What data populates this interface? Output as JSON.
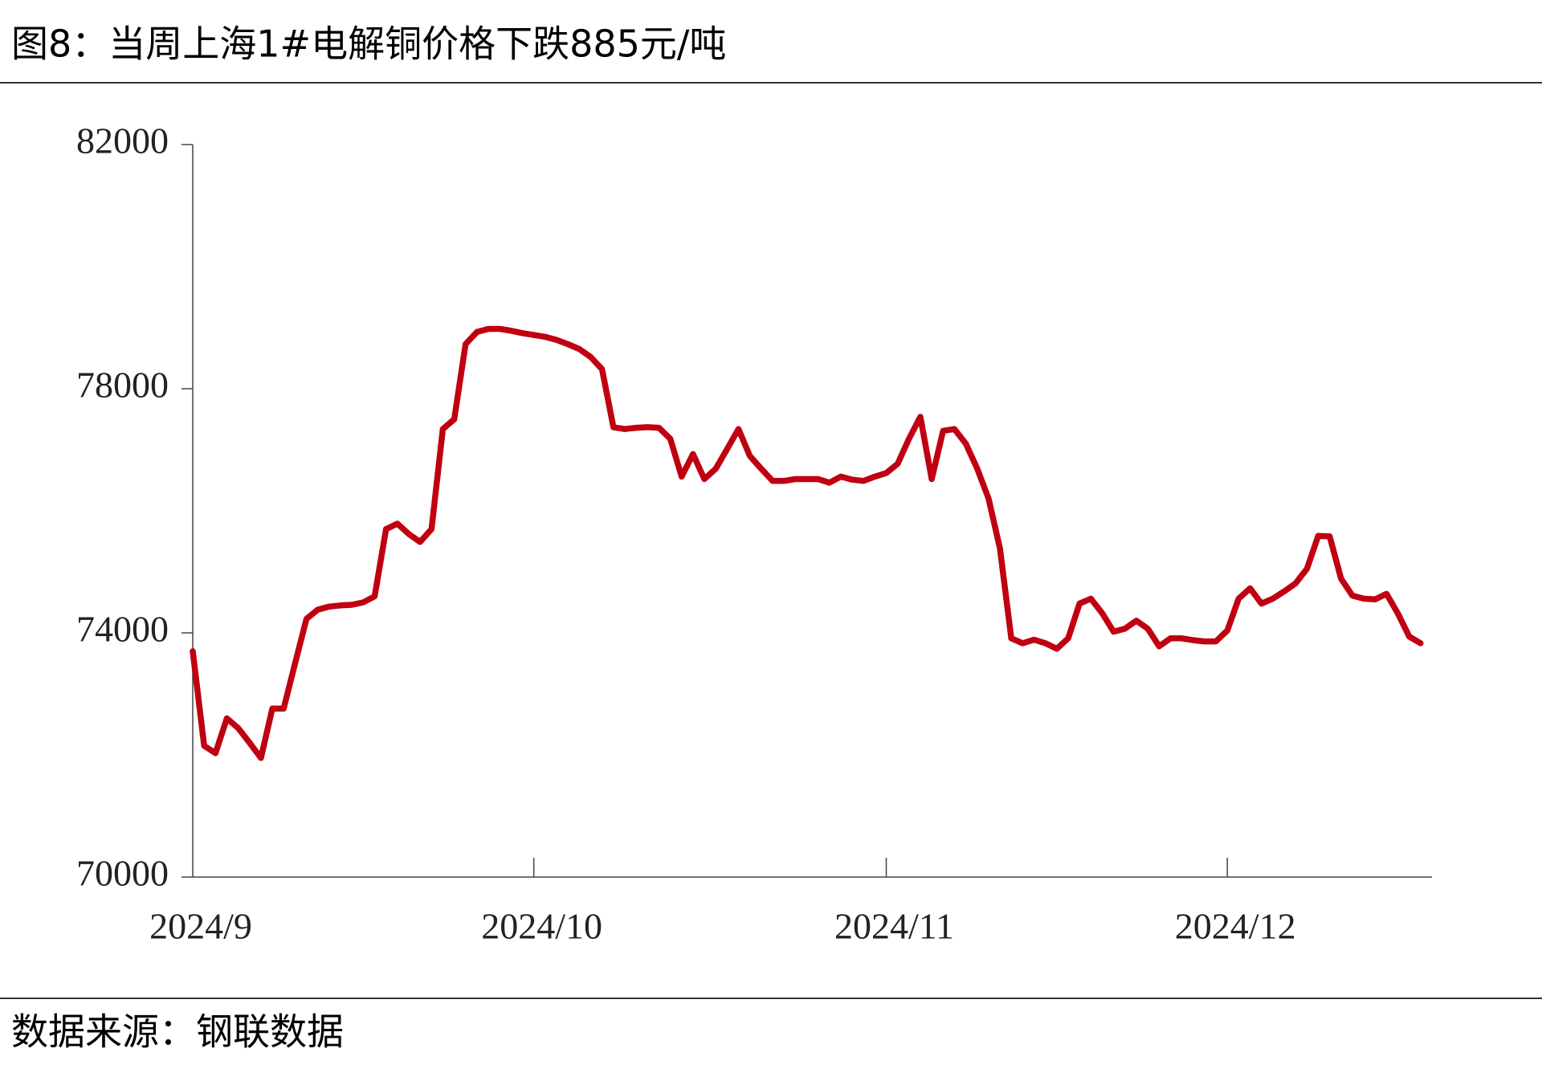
{
  "chart_data": {
    "type": "line",
    "title": "图8：当周上海1#电解铜价格下跌885元/吨",
    "source": "数据来源：钢联数据",
    "color": "#c00010",
    "categories": [
      "2024/9",
      null,
      null,
      null,
      null,
      null,
      null,
      null,
      null,
      null,
      null,
      null,
      null,
      null,
      null,
      null,
      null,
      null,
      null,
      null,
      null,
      null,
      null,
      null,
      null,
      null,
      null,
      null,
      null,
      null,
      "2024/10",
      null,
      null,
      null,
      null,
      null,
      null,
      null,
      null,
      null,
      null,
      null,
      null,
      null,
      null,
      null,
      null,
      null,
      null,
      null,
      null,
      null,
      null,
      null,
      null,
      null,
      null,
      null,
      null,
      null,
      null,
      "2024/11",
      null,
      null,
      null,
      null,
      null,
      null,
      null,
      null,
      null,
      null,
      null,
      null,
      null,
      null,
      null,
      null,
      null,
      null,
      null,
      null,
      null,
      null,
      null,
      null,
      null,
      null,
      null,
      null,
      null,
      "2024/12",
      null,
      null,
      null,
      null,
      null,
      null,
      null,
      null,
      null,
      null,
      null,
      null,
      null,
      null,
      null,
      null,
      null
    ],
    "values": [
      73700,
      72150,
      72030,
      72600,
      72440,
      72200,
      71950,
      72760,
      72760,
      73500,
      74230,
      74380,
      74430,
      74450,
      74460,
      74500,
      74600,
      75700,
      75790,
      75620,
      75490,
      75700,
      77340,
      77500,
      78730,
      78930,
      78980,
      78980,
      78950,
      78910,
      78880,
      78850,
      78800,
      78730,
      78650,
      78520,
      78320,
      77370,
      77340,
      77360,
      77370,
      77360,
      77180,
      76560,
      76930,
      76520,
      76690,
      77010,
      77340,
      76900,
      76690,
      76490,
      76490,
      76520,
      76520,
      76520,
      76460,
      76560,
      76510,
      76490,
      76560,
      76620,
      76770,
      77180,
      77540,
      76520,
      77310,
      77340,
      77100,
      76690,
      76200,
      75380,
      73910,
      73830,
      73890,
      73830,
      73740,
      73910,
      74480,
      74560,
      74320,
      74020,
      74070,
      74200,
      74070,
      73780,
      73910,
      73910,
      73880,
      73860,
      73860,
      74040,
      74560,
      74730,
      74480,
      74560,
      74680,
      74810,
      75050,
      75590,
      75580,
      74890,
      74610,
      74560,
      74550,
      74640,
      74320,
      73940,
      73830
    ],
    "ylim": [
      70000,
      82000
    ],
    "yticks": [
      70000,
      74000,
      78000,
      82000
    ],
    "grid": false
  }
}
